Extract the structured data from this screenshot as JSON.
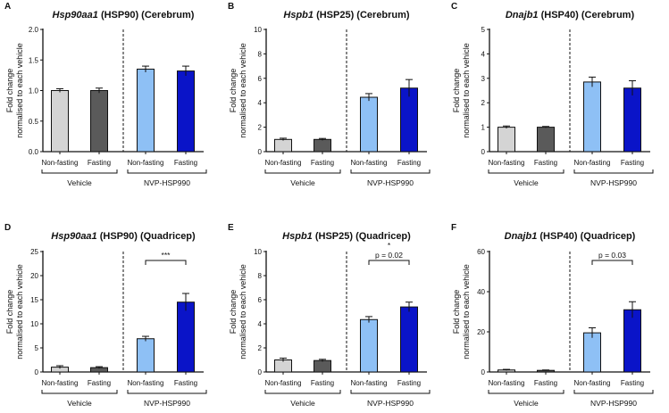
{
  "chart_data": [
    {
      "type": "bar",
      "letter": "A",
      "title_gene": "Hsp90aa1",
      "title_rest": " (HSP90) (Cerebrum)",
      "ylabel": [
        "Fold change",
        "normalised to each vehicle"
      ],
      "ylim": [
        0,
        2
      ],
      "yticks": [
        "0.0",
        "0.5",
        "1.0",
        "1.5",
        "2.0"
      ],
      "ytick_values": [
        0,
        0.5,
        1,
        1.5,
        2
      ],
      "categories": [
        "Non-fasting",
        "Fasting",
        "Non-fasting",
        "Fasting"
      ],
      "groups": [
        "Vehicle",
        "NVP-HSP990"
      ],
      "values": [
        1.0,
        1.0,
        1.35,
        1.32
      ],
      "sem": [
        0.03,
        0.04,
        0.05,
        0.08
      ],
      "annotation": null
    },
    {
      "type": "bar",
      "letter": "B",
      "title_gene": "Hspb1",
      "title_rest": " (HSP25) (Cerebrum)",
      "ylabel": [
        "Fold change",
        "normalised to each vehicle"
      ],
      "ylim": [
        0,
        10
      ],
      "yticks": [
        "0",
        "2",
        "4",
        "6",
        "8",
        "10"
      ],
      "ytick_values": [
        0,
        2,
        4,
        6,
        8,
        10
      ],
      "categories": [
        "Non-fasting",
        "Fasting",
        "Non-fasting",
        "Fasting"
      ],
      "groups": [
        "Vehicle",
        "NVP-HSP990"
      ],
      "values": [
        1.0,
        1.0,
        4.45,
        5.2
      ],
      "sem": [
        0.1,
        0.08,
        0.3,
        0.7
      ],
      "annotation": null
    },
    {
      "type": "bar",
      "letter": "C",
      "title_gene": "Dnajb1",
      "title_rest": " (HSP40) (Cerebrum)",
      "ylabel": [
        "Fold change",
        "normalised to each vehicle"
      ],
      "ylim": [
        0,
        5
      ],
      "yticks": [
        "0",
        "1",
        "2",
        "3",
        "4",
        "5"
      ],
      "ytick_values": [
        0,
        1,
        2,
        3,
        4,
        5
      ],
      "categories": [
        "Non-fasting",
        "Fasting",
        "Non-fasting",
        "Fasting"
      ],
      "groups": [
        "Vehicle",
        "NVP-HSP990"
      ],
      "values": [
        1.0,
        1.0,
        2.85,
        2.6
      ],
      "sem": [
        0.05,
        0.03,
        0.2,
        0.3
      ],
      "annotation": null
    },
    {
      "type": "bar",
      "letter": "D",
      "title_gene": "Hsp90aa1",
      "title_rest": " (HSP90) (Quadricep)",
      "ylabel": [
        "Fold change",
        "normalised to each vehicle"
      ],
      "ylim": [
        0,
        25
      ],
      "yticks": [
        "0",
        "5",
        "10",
        "15",
        "20",
        "25"
      ],
      "ytick_values": [
        0,
        5,
        10,
        15,
        20,
        25
      ],
      "categories": [
        "Non-fasting",
        "Fasting",
        "Non-fasting",
        "Fasting"
      ],
      "groups": [
        "Vehicle",
        "NVP-HSP990"
      ],
      "values": [
        1.0,
        0.9,
        6.9,
        14.5
      ],
      "sem": [
        0.3,
        0.2,
        0.5,
        1.8
      ],
      "annotation": {
        "stars": "***",
        "p": ""
      }
    },
    {
      "type": "bar",
      "letter": "E",
      "title_gene": "Hspb1",
      "title_rest": " (HSP25) (Quadricep)",
      "ylabel": [
        "Fold change",
        "normalised to each vehicle"
      ],
      "ylim": [
        0,
        10
      ],
      "yticks": [
        "0",
        "2",
        "4",
        "6",
        "8",
        "10"
      ],
      "ytick_values": [
        0,
        2,
        4,
        6,
        8,
        10
      ],
      "categories": [
        "Non-fasting",
        "Fasting",
        "Non-fasting",
        "Fasting"
      ],
      "groups": [
        "Vehicle",
        "NVP-HSP990"
      ],
      "values": [
        1.0,
        0.95,
        4.35,
        5.4
      ],
      "sem": [
        0.15,
        0.1,
        0.25,
        0.4
      ],
      "annotation": {
        "stars": "*",
        "p": "p = 0.02"
      }
    },
    {
      "type": "bar",
      "letter": "F",
      "title_gene": "Dnajb1",
      "title_rest": " (HSP40) (Quadricep)",
      "ylabel": [
        "Fold change",
        "normalised to each vehicle"
      ],
      "ylim": [
        0,
        60
      ],
      "yticks": [
        "0",
        "20",
        "40",
        "60"
      ],
      "ytick_values": [
        0,
        20,
        40,
        60
      ],
      "categories": [
        "Non-fasting",
        "Fasting",
        "Non-fasting",
        "Fasting"
      ],
      "groups": [
        "Vehicle",
        "NVP-HSP990"
      ],
      "values": [
        1.0,
        0.8,
        19.5,
        31.0
      ],
      "sem": [
        0.3,
        0.2,
        2.5,
        4.0
      ],
      "annotation": {
        "stars": "",
        "p": "p = 0.03"
      }
    }
  ],
  "colors": {
    "bars": [
      "#d4d4d4",
      "#5a5a5a",
      "#8ec0f5",
      "#0a14c8"
    ],
    "axis": "#111111"
  }
}
